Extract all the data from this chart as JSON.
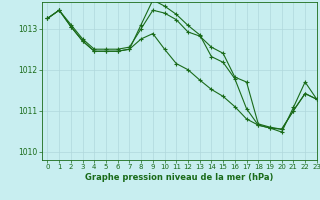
{
  "title": "Graphe pression niveau de la mer (hPa)",
  "background_color": "#c8eef0",
  "grid_color": "#b0d8dc",
  "line_color": "#1a6b1a",
  "xlim": [
    -0.5,
    23
  ],
  "ylim": [
    1009.8,
    1013.65
  ],
  "yticks": [
    1010,
    1011,
    1012,
    1013
  ],
  "xticks": [
    0,
    1,
    2,
    3,
    4,
    5,
    6,
    7,
    8,
    9,
    10,
    11,
    12,
    13,
    14,
    15,
    16,
    17,
    18,
    19,
    20,
    21,
    22,
    23
  ],
  "series1_x": [
    0,
    1,
    2,
    3,
    4,
    5,
    6,
    7,
    8,
    9,
    10,
    11,
    12,
    13,
    14,
    15,
    16,
    17,
    18,
    19,
    20,
    21,
    22,
    23
  ],
  "series1_y": [
    1013.25,
    1013.45,
    1013.1,
    1012.75,
    1012.5,
    1012.5,
    1012.5,
    1012.55,
    1013.0,
    1013.45,
    1013.38,
    1013.22,
    1012.92,
    1012.82,
    1012.55,
    1012.4,
    1011.82,
    1011.7,
    1010.68,
    1010.6,
    1010.55,
    1011.0,
    1011.42,
    1011.28
  ],
  "series2_x": [
    0,
    1,
    2,
    3,
    4,
    5,
    6,
    7,
    8,
    9,
    10,
    11,
    12,
    13,
    14,
    15,
    16,
    17,
    18,
    19,
    20,
    21,
    22,
    23
  ],
  "series2_y": [
    1013.25,
    1013.45,
    1013.05,
    1012.7,
    1012.45,
    1012.45,
    1012.45,
    1012.5,
    1012.75,
    1012.88,
    1012.5,
    1012.15,
    1012.0,
    1011.75,
    1011.52,
    1011.35,
    1011.1,
    1010.8,
    1010.65,
    1010.58,
    1010.55,
    1011.0,
    1011.42,
    1011.28
  ],
  "series3_x": [
    0,
    1,
    2,
    3,
    4,
    5,
    6,
    7,
    8,
    9,
    10,
    11,
    12,
    13,
    14,
    15,
    16,
    17,
    18,
    19,
    20,
    21,
    22,
    23
  ],
  "series3_y": [
    1013.25,
    1013.45,
    1013.05,
    1012.7,
    1012.45,
    1012.45,
    1012.45,
    1012.5,
    1013.1,
    1013.7,
    1013.55,
    1013.35,
    1013.08,
    1012.85,
    1012.32,
    1012.18,
    1011.78,
    1011.05,
    1010.65,
    1010.58,
    1010.48,
    1011.08,
    1011.7,
    1011.28
  ]
}
